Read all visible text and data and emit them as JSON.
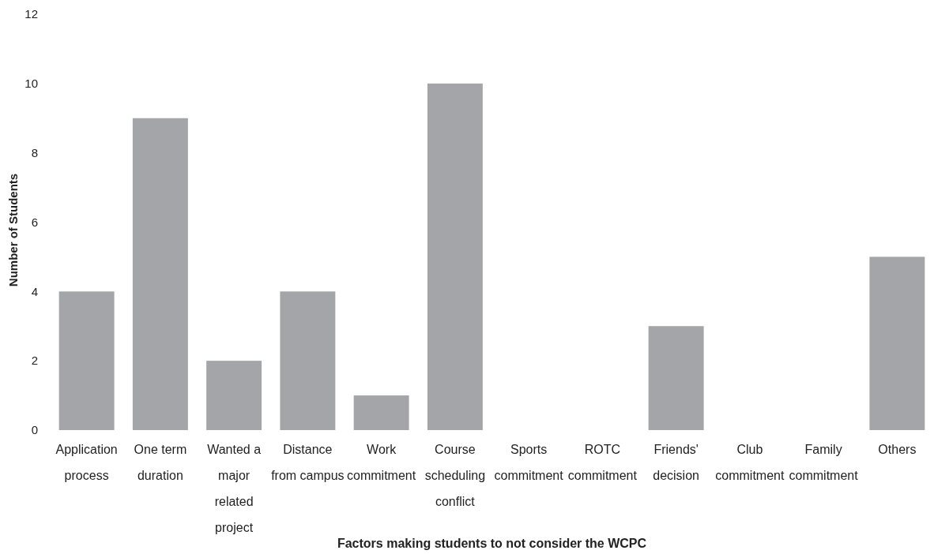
{
  "chart_data": {
    "type": "bar",
    "xlabel": "Factors making students to not consider the WCPC",
    "ylabel": "Number of Students",
    "categories": [
      "Application process",
      "One term duration",
      "Wanted a major related project",
      "Distance from campus",
      "Work commitment",
      "Course scheduling conflict",
      "Sports commitment",
      "ROTC commitment",
      "Friends' decision",
      "Club commitment",
      "Family commitment",
      "Others"
    ],
    "values": [
      4,
      9,
      2,
      4,
      1,
      10,
      0,
      0,
      3,
      0,
      0,
      5
    ],
    "color": "#a3a5a8",
    "ylim": [
      0,
      12
    ],
    "yticks": [
      0,
      2,
      4,
      6,
      8,
      10,
      12
    ],
    "grid": false
  }
}
